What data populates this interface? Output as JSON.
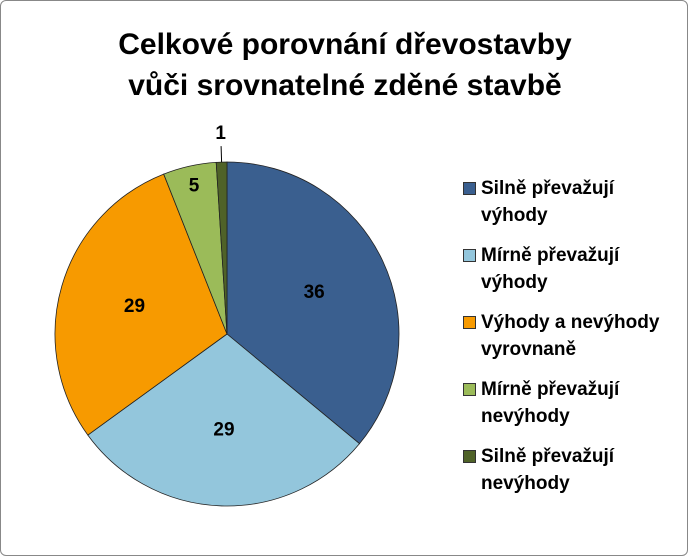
{
  "chart_data": {
    "type": "pie",
    "title": [
      "Celkové porovnání dřevostavby",
      "vůči srovnatelné zděné stavbě"
    ],
    "categories": [
      "Silně převažují výhody",
      "Mírně převažují výhody",
      "Výhody a nevýhody vyrovnaně",
      "Mírně převažují nevýhody",
      "Silně převažují nevýhody"
    ],
    "values": [
      36,
      29,
      29,
      5,
      1
    ],
    "colors": [
      "#3a5f8f",
      "#93c6dc",
      "#f79a00",
      "#9bbb59",
      "#4f6228"
    ],
    "legend": "right"
  }
}
